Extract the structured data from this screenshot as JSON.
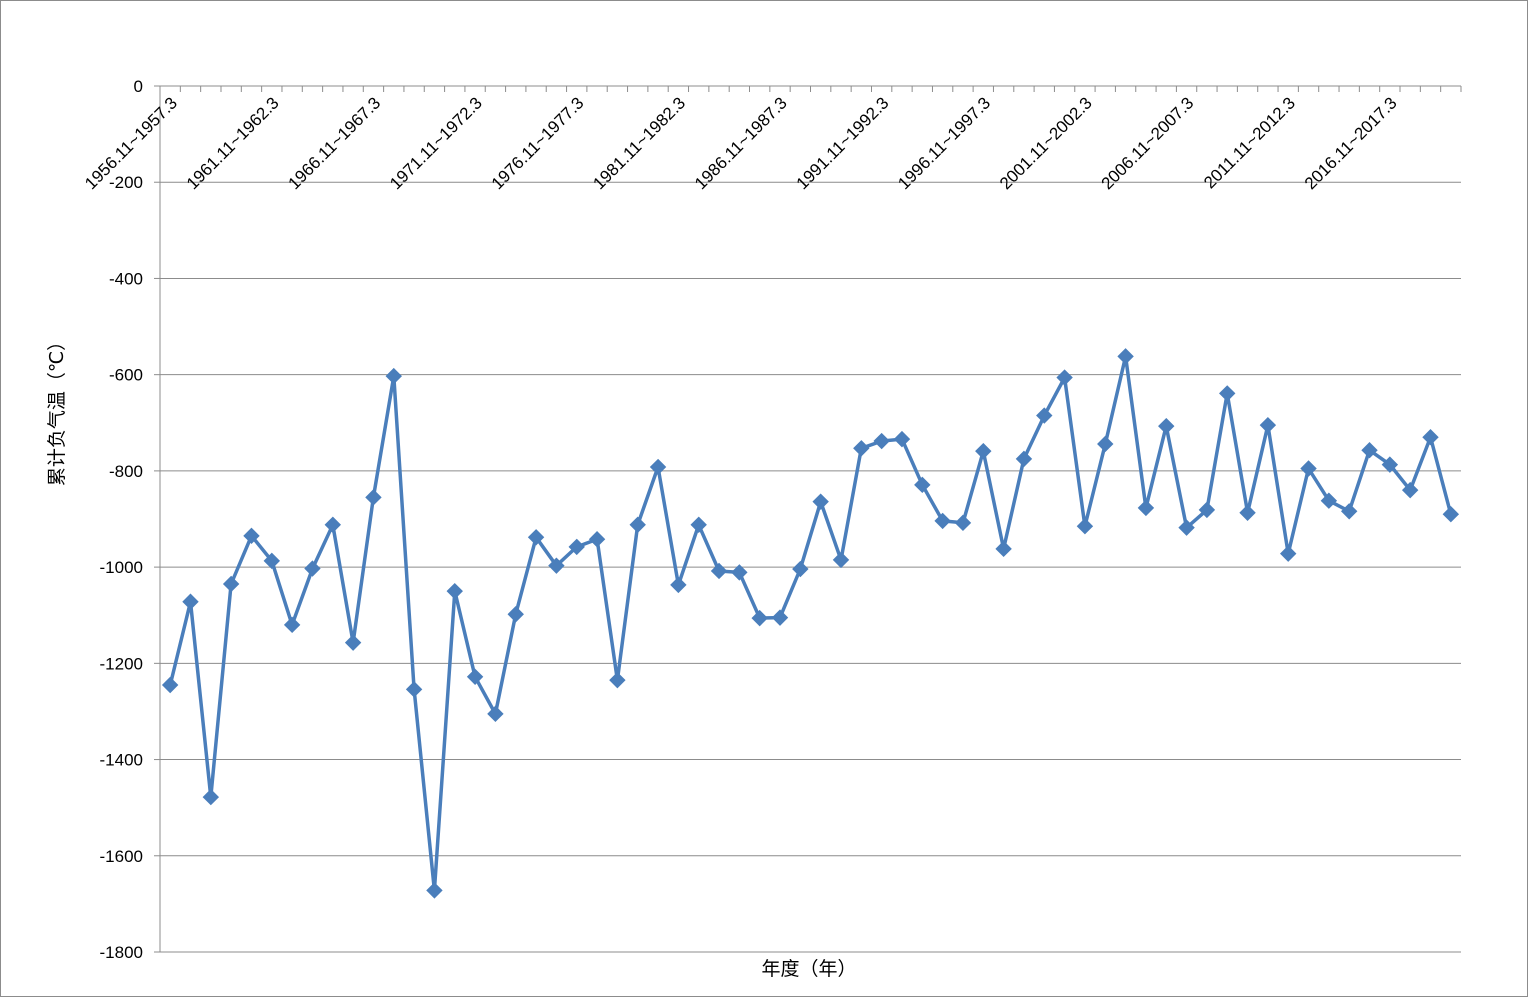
{
  "chart_data": {
    "type": "line",
    "title": "",
    "xlabel": "年度（年）",
    "ylabel": "累计负气温（℃）",
    "ylim": [
      -1800,
      0
    ],
    "yticks": [
      0,
      -200,
      -400,
      -600,
      -800,
      -1000,
      -1200,
      -1400,
      -1600,
      -1800
    ],
    "grid": true,
    "legend": "none",
    "x_tick_labels": [
      "1956.11~1957.3",
      "1961.11~1962.3",
      "1966.11~1967.3",
      "1971.11~1972.3",
      "1976.11~1977.3",
      "1981.11~1982.3",
      "1986.11~1987.3",
      "1991.11~1992.3",
      "1996.11~1997.3",
      "2001.11~2002.3",
      "2006.11~2007.3",
      "2011.11~2012.3",
      "2016.11~2017.3"
    ],
    "x_start_year": 1956,
    "series": [
      {
        "color": "#4a7ebb",
        "values": [
          -1245,
          -1072,
          -1478,
          -1035,
          -935,
          -987,
          -1120,
          -1003,
          -912,
          -1157,
          -855,
          -603,
          -1254,
          -1672,
          -1050,
          -1228,
          -1305,
          -1098,
          -938,
          -997,
          -958,
          -942,
          -1235,
          -912,
          -792,
          -1037,
          -912,
          -1008,
          -1011,
          -1106,
          -1105,
          -1004,
          -864,
          -985,
          -753,
          -738,
          -734,
          -829,
          -904,
          -908,
          -759,
          -962,
          -775,
          -685,
          -606,
          -915,
          -744,
          -562,
          -877,
          -707,
          -918,
          -881,
          -639,
          -887,
          -705,
          -972,
          -795,
          -862,
          -884,
          -757,
          -787,
          -840,
          -730,
          -890
        ]
      }
    ]
  }
}
